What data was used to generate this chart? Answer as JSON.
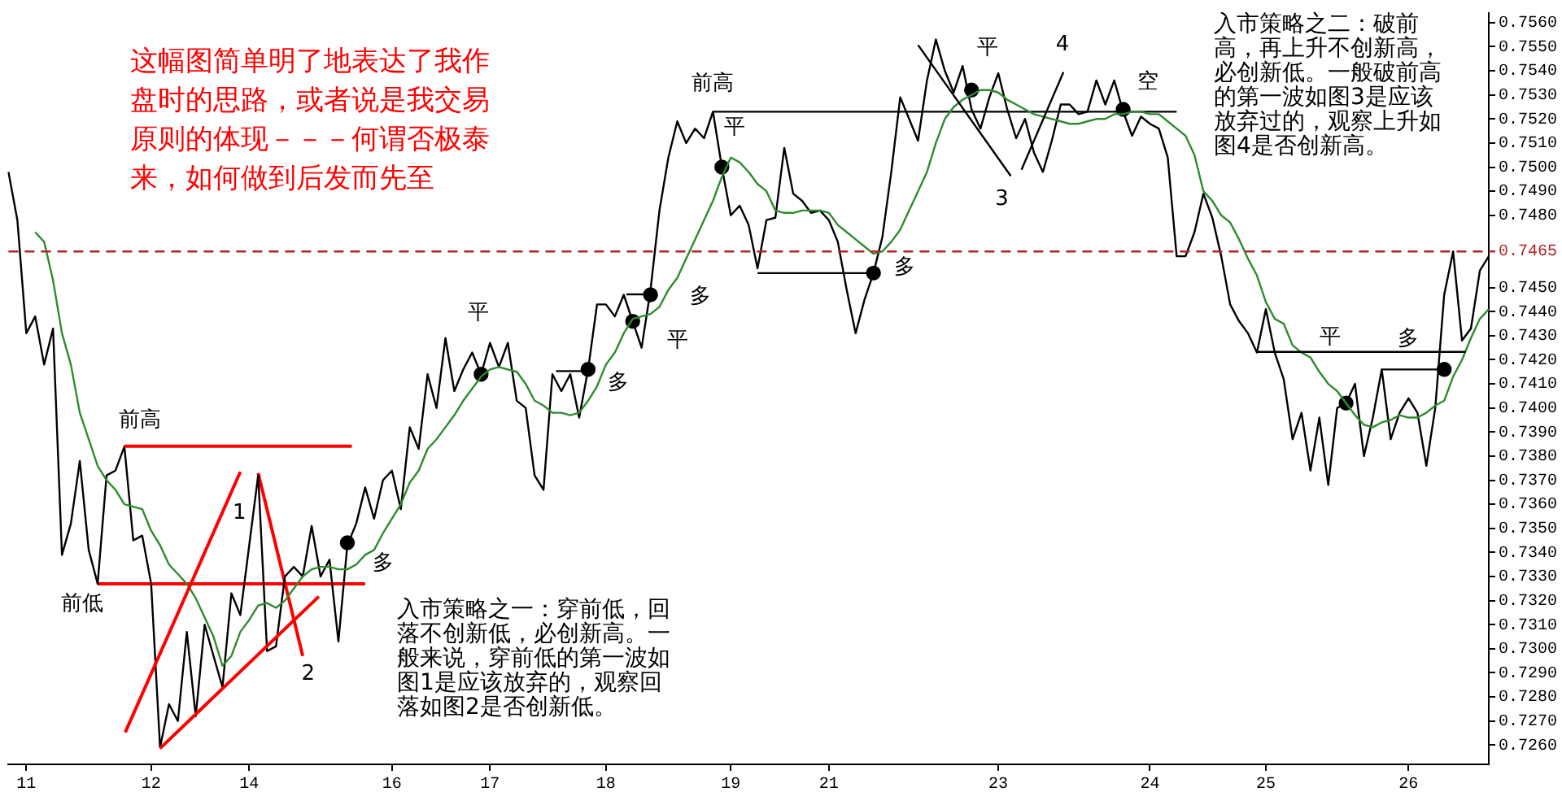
{
  "chart_data": {
    "type": "line",
    "title": "这幅图简单明了地表达了我作盘时的思路，或者说是我交易原则的体现－－－何谓否极泰来，如何做到后发而先至",
    "categories": [
      null,
      null,
      "11",
      null,
      null,
      null,
      null,
      null,
      null,
      null,
      null,
      null,
      null,
      null,
      null,
      null,
      "12",
      null,
      null,
      null,
      null,
      null,
      null,
      null,
      null,
      null,
      null,
      "14",
      null,
      null,
      null,
      null,
      null,
      null,
      null,
      null,
      null,
      null,
      null,
      null,
      null,
      null,
      null,
      "16",
      null,
      null,
      null,
      null,
      null,
      null,
      null,
      null,
      null,
      null,
      "17",
      null,
      null,
      null,
      null,
      null,
      null,
      null,
      null,
      null,
      null,
      null,
      null,
      "18",
      null,
      null,
      null,
      null,
      null,
      null,
      null,
      null,
      null,
      null,
      null,
      null,
      null,
      "19",
      null,
      null,
      null,
      null,
      null,
      null,
      null,
      null,
      null,
      null,
      "21",
      null,
      null,
      null,
      null,
      null,
      null,
      null,
      null,
      null,
      null,
      null,
      null,
      null,
      null,
      null,
      null,
      null,
      null,
      "23",
      null,
      null,
      null,
      null,
      null,
      null,
      null,
      null,
      null,
      null,
      null,
      null,
      null,
      null,
      null,
      null,
      "24",
      null,
      null,
      null,
      null,
      null,
      null,
      null,
      null,
      null,
      null,
      null,
      null,
      "25",
      null,
      null,
      null,
      null,
      null,
      null,
      null,
      null,
      null,
      null,
      null,
      null,
      null,
      null,
      null,
      "26",
      null,
      null,
      null,
      null,
      null,
      null,
      null,
      null,
      null
    ],
    "ylim": [
      0.7252,
      0.7564
    ],
    "yticks": [
      {
        "value": 0.726,
        "label": "0.7260"
      },
      {
        "value": 0.727,
        "label": "0.7270"
      },
      {
        "value": 0.728,
        "label": "0.7280"
      },
      {
        "value": 0.729,
        "label": "0.7290"
      },
      {
        "value": 0.73,
        "label": "0.7300"
      },
      {
        "value": 0.731,
        "label": "0.7310"
      },
      {
        "value": 0.732,
        "label": "0.7320"
      },
      {
        "value": 0.733,
        "label": "0.7330"
      },
      {
        "value": 0.734,
        "label": "0.7340"
      },
      {
        "value": 0.735,
        "label": "0.7350"
      },
      {
        "value": 0.736,
        "label": "0.7360"
      },
      {
        "value": 0.737,
        "label": "0.7370"
      },
      {
        "value": 0.738,
        "label": "0.7380"
      },
      {
        "value": 0.739,
        "label": "0.7390"
      },
      {
        "value": 0.74,
        "label": "0.7400"
      },
      {
        "value": 0.741,
        "label": "0.7410"
      },
      {
        "value": 0.742,
        "label": "0.7420"
      },
      {
        "value": 0.743,
        "label": "0.7430"
      },
      {
        "value": 0.744,
        "label": "0.7440"
      },
      {
        "value": 0.745,
        "label": "0.7450"
      },
      {
        "value": 0.748,
        "label": "0.7480"
      },
      {
        "value": 0.749,
        "label": "0.7490"
      },
      {
        "value": 0.75,
        "label": "0.7500"
      },
      {
        "value": 0.751,
        "label": "0.7510"
      },
      {
        "value": 0.752,
        "label": "0.7520"
      },
      {
        "value": 0.753,
        "label": "0.7530"
      },
      {
        "value": 0.754,
        "label": "0.7540"
      },
      {
        "value": 0.755,
        "label": "0.7550"
      },
      {
        "value": 0.756,
        "label": "0.7560"
      }
    ],
    "series": [
      {
        "color": "#2e8b2e",
        "values": [
          null,
          null,
          null,
          0.7473,
          0.7469,
          0.7453,
          0.7431,
          0.7418,
          0.7398,
          0.7387,
          0.7376,
          0.737,
          0.7366,
          0.736,
          0.7359,
          0.7358,
          0.7349,
          0.7343,
          0.7335,
          0.7331,
          0.7327,
          0.7321,
          0.7313,
          0.7305,
          0.7293,
          0.7297,
          0.7307,
          0.7312,
          0.7318,
          0.7319,
          0.7317,
          0.732,
          0.7325,
          0.733,
          0.7333,
          0.7334,
          0.7334,
          0.7333,
          0.7333,
          0.7335,
          0.7339,
          0.7341,
          0.7348,
          0.7354,
          0.736,
          0.7369,
          0.7374,
          0.7383,
          0.7387,
          0.7392,
          0.7397,
          0.7403,
          0.7408,
          0.7413,
          0.7416,
          0.7417,
          0.7416,
          0.7415,
          0.741,
          0.7403,
          0.7401,
          0.7398,
          0.7398,
          0.7397,
          0.7398,
          0.7403,
          0.7409,
          0.7418,
          0.7423,
          0.7431,
          0.7437,
          0.7438,
          0.7439,
          0.7442,
          0.7449,
          0.7454,
          0.7462,
          0.747,
          0.7478,
          0.7486,
          0.7496,
          0.7504,
          0.7502,
          0.7498,
          0.7493,
          0.749,
          0.7482,
          0.7481,
          0.7481,
          0.7482,
          0.7482,
          0.7482,
          0.7481,
          0.7476,
          0.7473,
          0.747,
          0.7467,
          0.7464,
          0.7465,
          0.7469,
          0.7474,
          0.7482,
          0.749,
          0.7498,
          0.751,
          0.752,
          0.7525,
          0.7528,
          0.753,
          0.7532,
          0.7532,
          0.7531,
          0.7528,
          0.7526,
          0.7524,
          0.7522,
          0.7521,
          0.752,
          0.7519,
          0.7518,
          0.7518,
          0.7519,
          0.752,
          0.752,
          0.7522,
          0.7522,
          0.7523,
          0.7523,
          0.7522,
          0.7522,
          0.7519,
          0.7516,
          0.7513,
          0.7505,
          0.749,
          0.7486,
          0.748,
          0.7477,
          0.747,
          0.7462,
          0.7455,
          0.7444,
          0.7437,
          0.7435,
          0.7426,
          0.7423,
          0.7421,
          0.7415,
          0.741,
          0.7407,
          0.7402,
          0.7397,
          0.7393,
          0.7392,
          0.7394,
          0.7395,
          0.7397,
          0.7396,
          0.7396,
          0.7398,
          0.7401,
          0.7403,
          0.7413,
          0.742,
          0.7429,
          0.7437,
          0.7441
        ]
      },
      {
        "color": "#000000",
        "values": [
          0.7498,
          0.7478,
          0.7431,
          0.7438,
          0.7418,
          0.7433,
          0.7339,
          0.7352,
          0.7378,
          0.7341,
          0.7327,
          0.7372,
          0.7374,
          0.7384,
          0.7345,
          0.7347,
          0.7327,
          0.7259,
          0.7277,
          0.727,
          0.7307,
          0.7272,
          0.731,
          0.7297,
          0.7284,
          0.7323,
          0.7314,
          0.7343,
          0.7372,
          0.7299,
          0.7301,
          0.733,
          0.7334,
          0.733,
          0.7351,
          0.733,
          0.7337,
          0.7303,
          0.7343,
          0.7352,
          0.7367,
          0.7354,
          0.737,
          0.7374,
          0.7358,
          0.7392,
          0.7383,
          0.7414,
          0.74,
          0.7429,
          0.7407,
          0.7416,
          0.7423,
          0.7414,
          0.7427,
          0.7417,
          0.7427,
          0.7403,
          0.74,
          0.7372,
          0.7366,
          0.7414,
          0.7407,
          0.7414,
          0.7396,
          0.7416,
          0.7443,
          0.7443,
          0.7438,
          0.7447,
          0.7436,
          0.7425,
          0.7449,
          0.7482,
          0.7504,
          0.7519,
          0.751,
          0.7516,
          0.7512,
          0.7523,
          0.75,
          0.748,
          0.7484,
          0.7476,
          0.7458,
          0.7478,
          0.7479,
          0.7508,
          0.7489,
          0.7486,
          0.7481,
          0.7482,
          0.7478,
          0.7469,
          0.7449,
          0.7431,
          0.7445,
          0.7456,
          0.7471,
          0.7498,
          0.7529,
          0.752,
          0.7511,
          0.7536,
          0.7553,
          0.754,
          0.7531,
          0.7542,
          0.7524,
          0.7516,
          0.7529,
          0.7539,
          0.7524,
          0.7512,
          0.752,
          0.7506,
          0.7498,
          0.7511,
          0.7526,
          0.7526,
          0.7522,
          0.7523,
          0.7536,
          0.7526,
          0.7536,
          0.7523,
          0.7513,
          0.7521,
          0.7518,
          0.7516,
          0.7504,
          0.7463,
          0.7463,
          0.7473,
          0.7489,
          0.7479,
          0.7463,
          0.7443,
          0.7436,
          0.7431,
          0.7423,
          0.7441,
          0.7423,
          0.7412,
          0.7387,
          0.7398,
          0.7374,
          0.7396,
          0.7368,
          0.74,
          0.7402,
          0.741,
          0.738,
          0.7396,
          0.7416,
          0.7387,
          0.7398,
          0.7404,
          0.7398,
          0.7376,
          0.74,
          0.7447,
          0.7465,
          0.7428,
          0.7433,
          0.7457,
          0.7463
        ]
      },
      {
        "type": "scatter",
        "color": "#000000",
        "marker": "circle",
        "values": [
          null,
          null,
          null,
          null,
          null,
          null,
          null,
          null,
          null,
          null,
          null,
          null,
          null,
          null,
          null,
          null,
          null,
          null,
          null,
          null,
          null,
          null,
          null,
          null,
          null,
          null,
          null,
          null,
          null,
          null,
          null,
          null,
          null,
          null,
          null,
          null,
          null,
          null,
          0.7344,
          null,
          null,
          null,
          null,
          null,
          null,
          null,
          null,
          null,
          null,
          null,
          null,
          null,
          null,
          0.7414,
          null,
          null,
          null,
          null,
          null,
          null,
          null,
          null,
          null,
          null,
          null,
          0.7416,
          null,
          null,
          null,
          null,
          0.7436,
          null,
          0.7447,
          null,
          null,
          null,
          null,
          null,
          null,
          null,
          0.75,
          null,
          null,
          null,
          null,
          null,
          null,
          null,
          null,
          null,
          null,
          null,
          null,
          null,
          null,
          null,
          null,
          0.7456,
          null,
          null,
          null,
          null,
          null,
          null,
          null,
          null,
          null,
          null,
          0.7532,
          null,
          null,
          null,
          null,
          null,
          null,
          null,
          null,
          null,
          null,
          null,
          null,
          null,
          null,
          null,
          null,
          0.7524,
          null,
          null,
          null,
          null,
          null,
          null,
          null,
          null,
          null,
          null,
          null,
          null,
          null,
          null,
          null,
          null,
          null,
          null,
          null,
          null,
          null,
          null,
          null,
          null,
          0.7402,
          null,
          null,
          null,
          null,
          null,
          null,
          null,
          null,
          null,
          null,
          0.7416,
          null,
          null,
          null,
          null,
          null
        ]
      },
      {
        "color": "#ff0000",
        "values": [
          null,
          null,
          null,
          null,
          null,
          null,
          null,
          null,
          null,
          null,
          0.7327,
          null,
          null,
          null,
          null,
          null,
          null,
          null,
          null,
          null,
          null,
          null,
          null,
          null,
          null,
          null,
          null,
          null,
          null,
          null,
          null,
          null,
          null,
          null,
          null,
          null,
          null,
          null,
          null,
          null,
          0.7327,
          null,
          null,
          null,
          null,
          null,
          null,
          null,
          null,
          null,
          null,
          null,
          null,
          null,
          null,
          null,
          null,
          null,
          null,
          null,
          null,
          null,
          null,
          null,
          null,
          null,
          null,
          null,
          null,
          null,
          null,
          null,
          null,
          null,
          null,
          null,
          null,
          null,
          null,
          null,
          null,
          null,
          null,
          null,
          null,
          null,
          null,
          null,
          null,
          null,
          null,
          null,
          null,
          null,
          null,
          null,
          null,
          null,
          null,
          null,
          null,
          null,
          null,
          null,
          null,
          null,
          null,
          null,
          null,
          null,
          null,
          null,
          null,
          null,
          null,
          null,
          null,
          null,
          null,
          null,
          null,
          null,
          null,
          null,
          null,
          null,
          null,
          null,
          null,
          null,
          null,
          null,
          null,
          null,
          null,
          null,
          null,
          null,
          null,
          null,
          null,
          null,
          null,
          null,
          null,
          null,
          null,
          null,
          null,
          null,
          null,
          null,
          null,
          null,
          null,
          null,
          null,
          null,
          null,
          null,
          null,
          null,
          null,
          null,
          null,
          null,
          null
        ]
      },
      {
        "color": "#ff0000",
        "values": [
          null,
          null,
          null,
          null,
          null,
          null,
          null,
          null,
          null,
          null,
          null,
          null,
          null,
          null,
          null,
          null,
          null,
          null,
          null,
          null,
          null,
          null,
          null,
          null,
          null,
          null,
          null,
          null,
          0.7373,
          null,
          null,
          null,
          null,
          0.7297,
          null,
          null,
          null,
          null,
          null,
          null,
          null,
          null,
          null,
          null,
          null,
          null,
          null,
          null,
          null,
          null,
          null,
          null,
          null,
          null,
          null,
          null,
          null,
          null,
          null,
          null,
          null,
          null,
          null,
          null,
          null,
          null,
          null,
          null,
          null,
          null,
          null,
          null,
          null,
          null,
          null,
          null,
          null,
          null,
          null,
          null,
          null,
          null,
          null,
          null,
          null,
          null,
          null,
          null,
          null,
          null,
          null,
          null,
          null,
          null,
          null,
          null,
          null,
          null,
          null,
          null,
          null,
          null,
          null,
          null,
          null,
          null,
          null,
          null,
          null,
          null,
          null,
          null,
          null,
          null,
          null,
          null,
          null,
          null,
          null,
          null,
          null,
          null,
          null,
          null,
          null,
          null,
          null,
          null,
          null,
          null,
          null,
          null,
          null,
          null,
          null,
          null,
          null,
          null,
          null,
          null,
          null,
          null,
          null,
          null,
          null,
          null,
          null,
          null,
          null,
          null,
          null,
          null,
          null,
          null,
          null,
          null,
          null,
          null,
          null,
          null,
          null,
          null,
          null,
          null,
          null,
          null,
          null
        ]
      },
      {
        "color": "#000000",
        "values": [
          null,
          null,
          null,
          null,
          null,
          null,
          null,
          null,
          null,
          null,
          null,
          null,
          null,
          null,
          null,
          null,
          null,
          null,
          null,
          null,
          null,
          null,
          null,
          null,
          null,
          null,
          null,
          null,
          null,
          null,
          null,
          null,
          null,
          null,
          null,
          null,
          null,
          null,
          null,
          null,
          null,
          null,
          null,
          null,
          null,
          null,
          null,
          null,
          null,
          null,
          null,
          null,
          null,
          null,
          null,
          null,
          null,
          null,
          null,
          null,
          null,
          null,
          null,
          null,
          null,
          null,
          null,
          null,
          null,
          null,
          null,
          null,
          null,
          null,
          null,
          null,
          null,
          null,
          null,
          0.7523,
          null,
          null,
          null,
          null,
          null,
          null,
          null,
          null,
          null,
          null,
          null,
          null,
          null,
          null,
          null,
          null,
          null,
          null,
          null,
          null,
          null,
          null,
          null,
          null,
          null,
          null,
          null,
          null,
          null,
          null,
          null,
          null,
          null,
          null,
          null,
          null,
          null,
          null,
          null,
          null,
          null,
          null,
          null,
          null,
          null,
          null,
          null,
          null,
          null,
          null,
          null,
          0.7523,
          null,
          null,
          null,
          null,
          null,
          null,
          null,
          null,
          null,
          null,
          null,
          null,
          null,
          null,
          null,
          null,
          null,
          null,
          null,
          null,
          null,
          null,
          null,
          null,
          null,
          null,
          null,
          null,
          null,
          null,
          null,
          null,
          null,
          null,
          null
        ]
      },
      {
        "color": "#000000",
        "values": [
          null,
          null,
          null,
          null,
          null,
          null,
          null,
          null,
          null,
          null,
          null,
          null,
          null,
          null,
          null,
          null,
          null,
          null,
          null,
          null,
          null,
          null,
          null,
          null,
          null,
          null,
          null,
          null,
          null,
          null,
          null,
          null,
          null,
          null,
          null,
          null,
          null,
          null,
          null,
          null,
          null,
          null,
          null,
          null,
          null,
          null,
          null,
          null,
          null,
          null,
          null,
          null,
          null,
          null,
          null,
          null,
          null,
          null,
          null,
          null,
          null,
          null,
          null,
          null,
          null,
          null,
          null,
          null,
          null,
          null,
          null,
          null,
          null,
          null,
          null,
          null,
          null,
          null,
          null,
          null,
          null,
          null,
          null,
          null,
          0.7456,
          null,
          null,
          null,
          null,
          null,
          null,
          null,
          null,
          null,
          null,
          null,
          null,
          0.7456,
          null,
          null,
          null,
          null,
          null,
          null,
          null,
          null,
          null,
          null,
          null,
          null,
          null,
          null,
          null,
          null,
          null,
          null,
          null,
          null,
          null,
          null,
          null,
          null,
          null,
          null,
          null,
          null,
          null,
          null,
          null,
          null,
          null,
          null,
          null,
          null,
          null,
          null,
          null,
          null,
          null,
          null,
          null,
          null,
          null,
          null,
          null,
          null,
          null,
          null,
          null,
          null,
          null,
          null,
          null,
          null,
          null,
          null,
          null,
          null,
          null,
          null,
          null,
          null,
          null,
          null,
          null,
          null,
          null
        ]
      }
    ],
    "ref_lines": [
      {
        "axis": "y",
        "value": 0.7465,
        "label": "0.7465",
        "color": "#b22222",
        "line_style": "dashed"
      }
    ],
    "annotations": [
      "前高",
      "前低",
      "1",
      {
        "text": "2",
        "y": 0.7297
      },
      "多",
      "平",
      "多",
      "平",
      "多",
      "平",
      "前高",
      "多",
      "平",
      "4",
      "3",
      {
        "text": "空",
        "y": 0.7523
      },
      "平",
      "多",
      "入市策略之一：穿前低，回落不创新低，必创新高。一般来说，穿前低的第一波如图1是应该放弃的，观察回落如图2是否创新低。",
      "入市策略之二：破前高，再上升不创新高，必创新低。一般破前高的第一波如图3是应该放弃过的，观察上升如图4是否创新高。"
    ]
  }
}
